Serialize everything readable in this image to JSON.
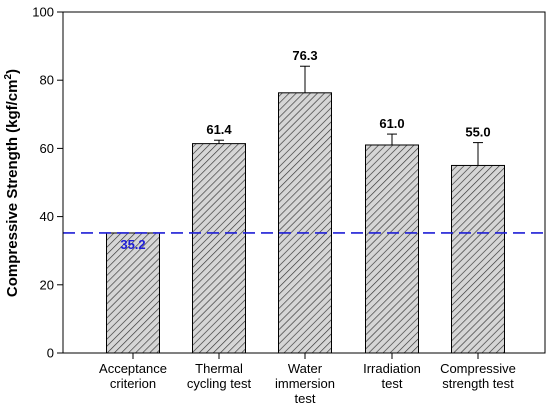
{
  "chart_data": {
    "type": "bar",
    "title": "",
    "xlabel": "",
    "ylabel": "Compressive Strength (kgf/cm",
    "ylabel_superscript": "2",
    "ylabel_suffix": ")",
    "ylim": [
      0,
      100
    ],
    "yticks": [
      0,
      20,
      40,
      60,
      80,
      100
    ],
    "grid": false,
    "bar_fill": "hatched gray",
    "categories": [
      [
        "Acceptance",
        "criterion"
      ],
      [
        "Thermal",
        "cycling test"
      ],
      [
        "Water",
        "immersion",
        "test"
      ],
      [
        "Irradiation",
        "test"
      ],
      [
        "Compressive",
        "strength test"
      ]
    ],
    "values": [
      35.2,
      61.4,
      76.3,
      61.0,
      55.0
    ],
    "errors": [
      null,
      1.0,
      7.8,
      3.2,
      6.7
    ],
    "value_labels": [
      "35.2",
      "61.4",
      "76.3",
      "61.0",
      "55.0"
    ],
    "reference_line": {
      "value": 35.2,
      "style": "dashed",
      "color": "#1f1fd6"
    },
    "value_label_colors": [
      "#1f1fd6",
      "#000000",
      "#000000",
      "#000000",
      "#000000"
    ]
  }
}
